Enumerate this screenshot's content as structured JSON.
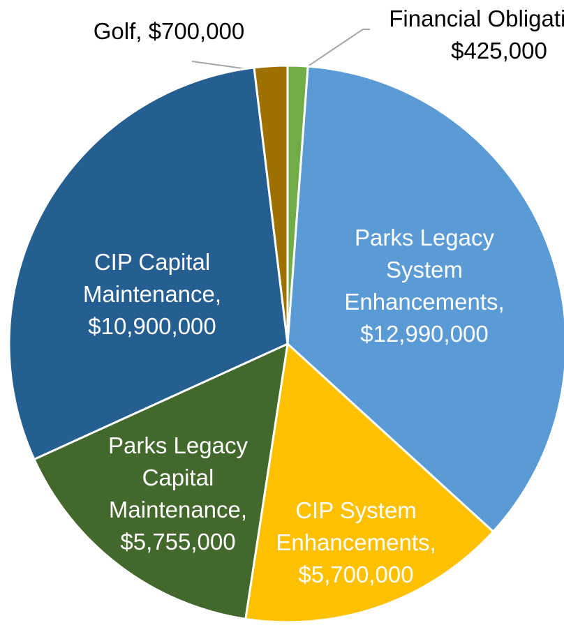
{
  "chart_data": {
    "type": "pie",
    "categories": [
      "Financial Obligations,",
      "Parks Legacy System Enhancements,",
      "CIP System Enhancements,",
      "Parks Legacy Capital Maintenance,",
      "CIP Capital Maintenance,",
      "Golf,"
    ],
    "values": [
      425000,
      12990000,
      5700000,
      5755000,
      10900000,
      700000
    ],
    "value_labels": [
      "$425,000",
      "$12,990,000",
      "$5,700,000",
      "$5,755,000",
      "$10,900,000",
      "$700,000"
    ],
    "colors": [
      "#70ad47",
      "#5b9bd5",
      "#ffc000",
      "#43682b",
      "#255e91",
      "#9e7000"
    ],
    "start_angle": 90,
    "direction": "clockwise"
  }
}
